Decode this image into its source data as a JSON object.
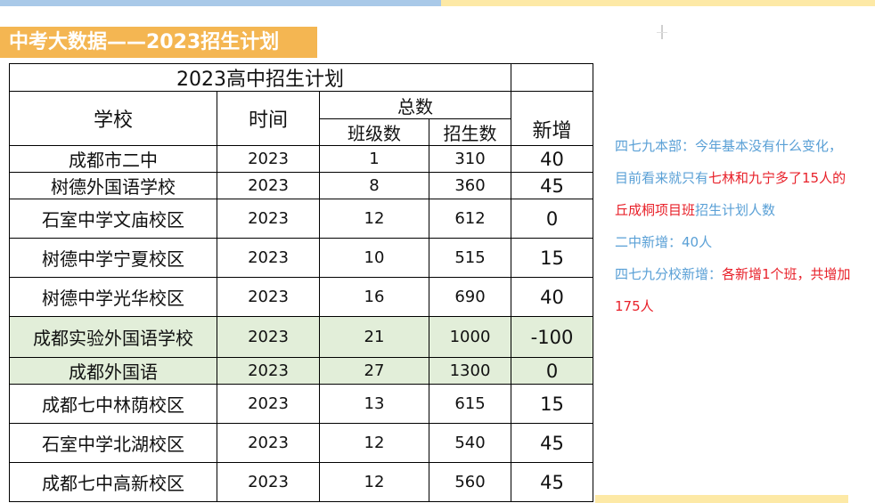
{
  "banner": {
    "title": "中考大数据——2023招生计划"
  },
  "table": {
    "title": "2023高中招生计划",
    "headers": {
      "school": "学校",
      "time": "时间",
      "total": "总数",
      "classes": "班级数",
      "enrollment": "招生数",
      "new": "新增"
    },
    "rows": [
      {
        "school": "成都市二中",
        "year": "2023",
        "classes": "1",
        "enrollment": "310",
        "new": "40"
      },
      {
        "school": "树德外国语学校",
        "year": "2023",
        "classes": "8",
        "enrollment": "360",
        "new": "45"
      },
      {
        "school": "石室中学文庙校区",
        "year": "2023",
        "classes": "12",
        "enrollment": "612",
        "new": "0"
      },
      {
        "school": "树德中学宁夏校区",
        "year": "2023",
        "classes": "10",
        "enrollment": "515",
        "new": "15"
      },
      {
        "school": "树德中学光华校区",
        "year": "2023",
        "classes": "16",
        "enrollment": "690",
        "new": "40"
      },
      {
        "school": "成都实验外国语学校",
        "year": "2023",
        "classes": "21",
        "enrollment": "1000",
        "new": "-100"
      },
      {
        "school": "成都外国语",
        "year": "2023",
        "classes": "27",
        "enrollment": "1300",
        "new": "0"
      },
      {
        "school": "成都七中林荫校区",
        "year": "2023",
        "classes": "13",
        "enrollment": "615",
        "new": "15"
      },
      {
        "school": "石室中学北湖校区",
        "year": "2023",
        "classes": "12",
        "enrollment": "540",
        "new": "45"
      },
      {
        "school": "成都七中高新校区",
        "year": "2023",
        "classes": "12",
        "enrollment": "560",
        "new": "45"
      }
    ]
  },
  "notes": {
    "p1_a": "四七九本部：今年基本没有什么变化，目前看来就只有",
    "p1_b": "七林和九宁多了15人的丘成桐项目班",
    "p1_c": "招生计划人数",
    "p2": "二中新增：40人",
    "p3_a": "四七九分校新增：",
    "p3_b": "各新增1个班，共增加175人"
  },
  "colors": {
    "banner": "#f4b652",
    "highlight_rows": "#e2eed9",
    "note_blue": "#5aa0d6",
    "note_red": "#e8212a",
    "top_bar_blue": "#a9c9e8",
    "top_bar_yellow": "#fde9a6"
  }
}
